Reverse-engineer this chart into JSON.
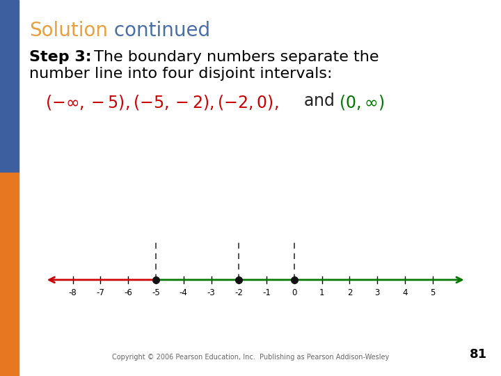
{
  "bg_color": "#ffffff",
  "title_solution_color": "#E8A040",
  "title_continued_color": "#4A6FA5",
  "step_bold": "Step 3:",
  "step_rest": " The boundary numbers separate the number line into four disjoint intervals:",
  "number_line_min": -8,
  "number_line_max": 5,
  "boundary_points": [
    -5,
    -2,
    0
  ],
  "red_line_color": "#cc0000",
  "green_line_color": "#007700",
  "dot_color": "#111111",
  "dashed_line_color": "#333333",
  "copyright_text": "Copyright © 2006 Pearson Education, Inc.  Publishing as Pearson Addison-Wesley",
  "page_number": "81",
  "sidebar_blue": "#3D5FA0",
  "sidebar_orange": "#E87722",
  "sidebar_split": 0.54
}
